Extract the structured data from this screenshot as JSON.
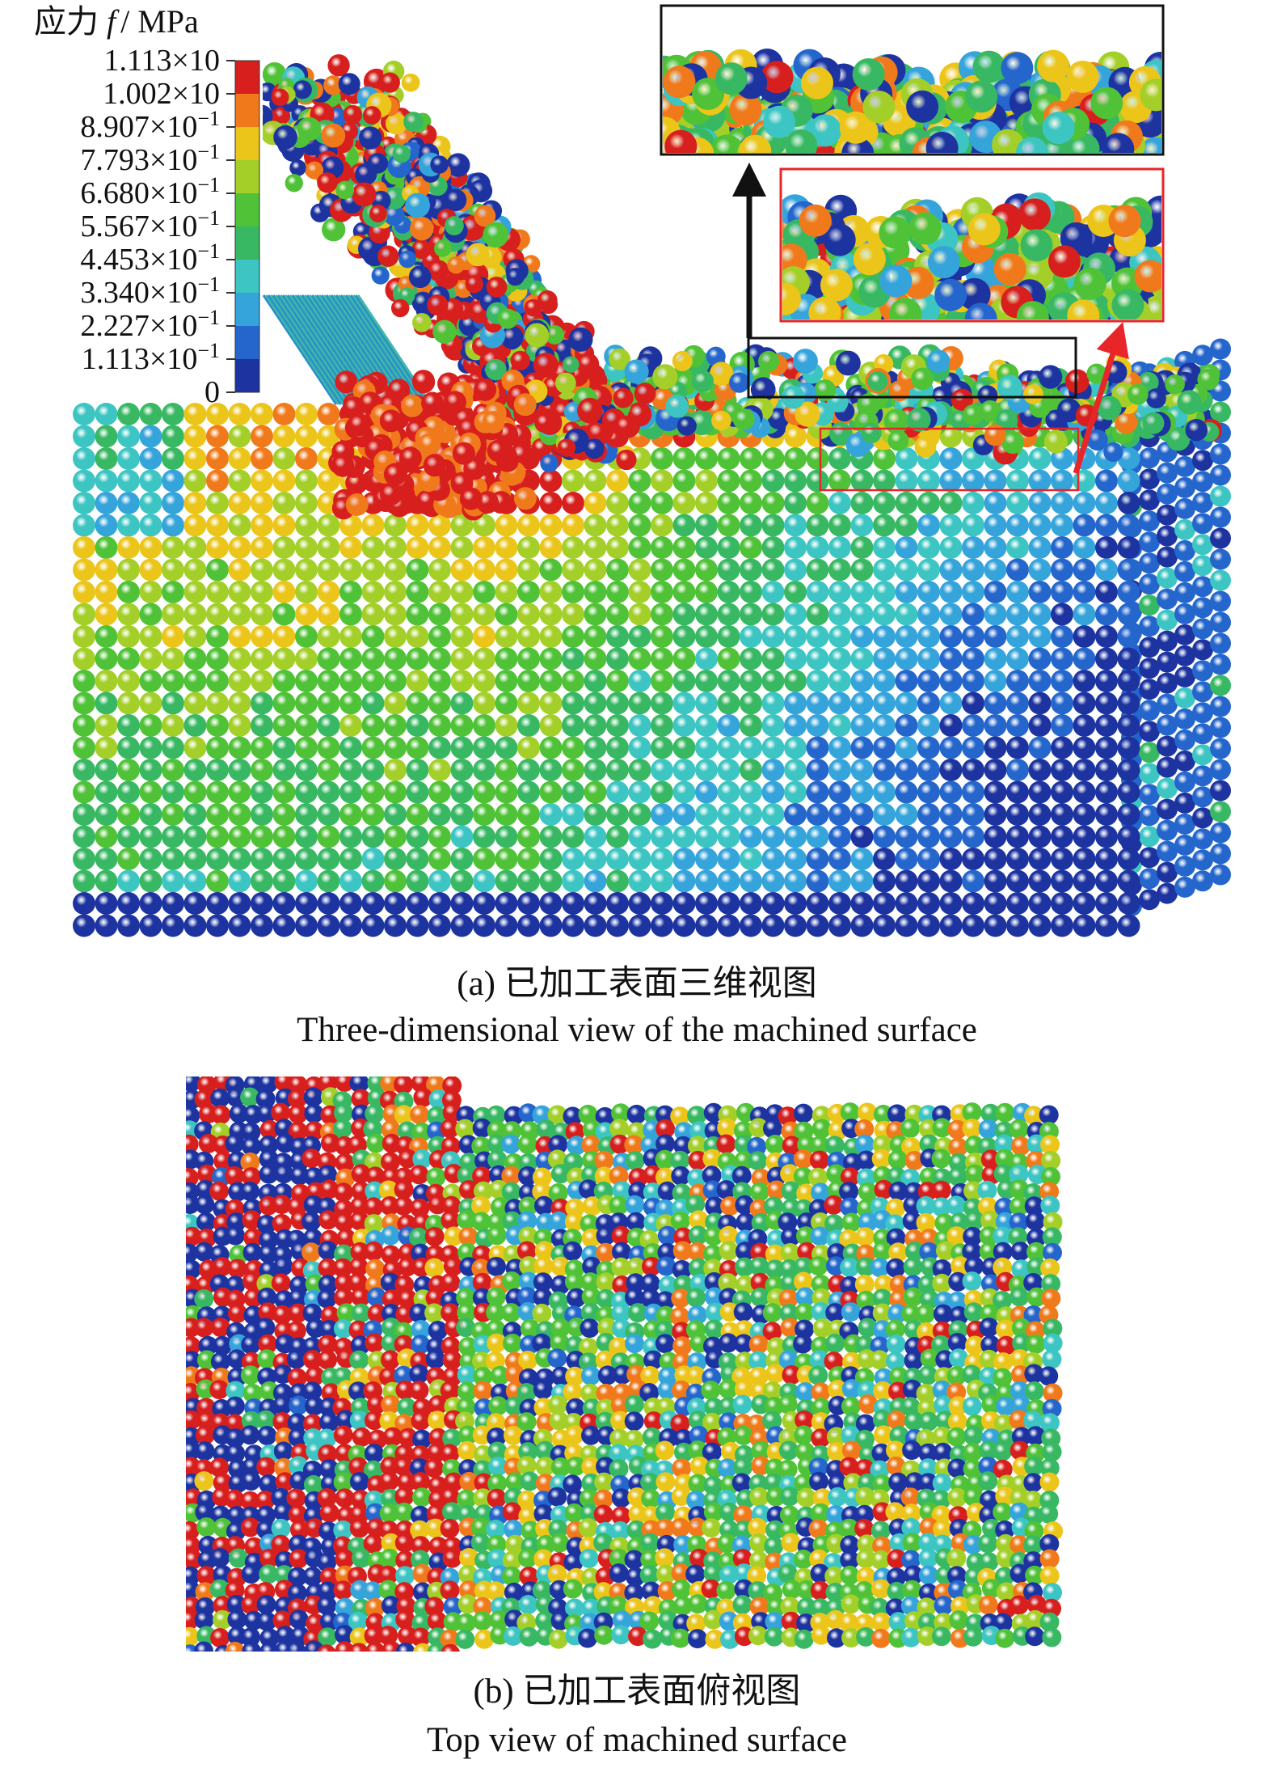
{
  "legend": {
    "title": {
      "prefix": "应力 ",
      "symbol": "f",
      "unit": "/ MPa"
    },
    "ticks": [
      {
        "mantissa": "1.113×10"
      },
      {
        "mantissa": "1.002×10"
      },
      {
        "mantissa": "8.907×10",
        "exponent": "−1"
      },
      {
        "mantissa": "7.793×10",
        "exponent": "−1"
      },
      {
        "mantissa": "6.680×10",
        "exponent": "−1"
      },
      {
        "mantissa": "5.567×10",
        "exponent": "−1"
      },
      {
        "mantissa": "4.453×10",
        "exponent": "−1"
      },
      {
        "mantissa": "3.340×10",
        "exponent": "−1"
      },
      {
        "mantissa": "2.227×10",
        "exponent": "−1"
      },
      {
        "mantissa": "1.113×10",
        "exponent": "−1"
      },
      {
        "mantissa": "0"
      }
    ]
  },
  "panels": [
    {
      "caption": "(a) 已加工表面三维视图",
      "caption_en": "Three-dimensional view of the machined surface"
    },
    {
      "caption": "(b) 已加工表面俯视图",
      "caption_en": "Top view of machined surface"
    }
  ]
}
